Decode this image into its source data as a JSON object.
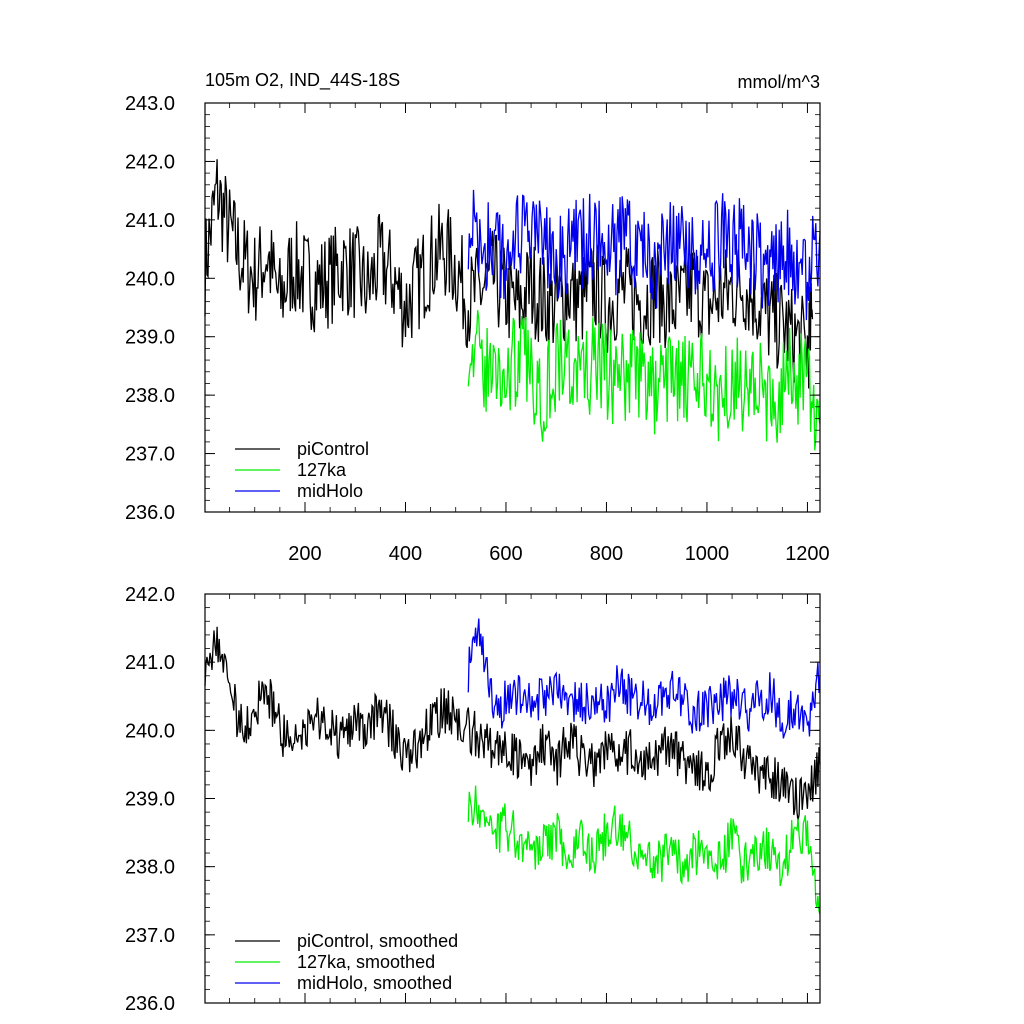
{
  "chart_data": [
    {
      "type": "line",
      "title_left": "105m O2, IND_44S-18S",
      "title_right": "mmol/m^3",
      "xlim": [
        1,
        1225
      ],
      "ylim": [
        236.0,
        243.0
      ],
      "y_ticks": [
        "236.0",
        "237.0",
        "238.0",
        "239.0",
        "240.0",
        "241.0",
        "242.0",
        "243.0"
      ],
      "x_ticks": [
        "200",
        "400",
        "600",
        "800",
        "1000",
        "1200"
      ],
      "legend_position": "bottom-left",
      "series": [
        {
          "name": "piControl",
          "color": "#000000",
          "x": [
            1,
            25,
            50,
            75,
            100,
            125,
            150,
            175,
            200,
            225,
            250,
            275,
            300,
            325,
            350,
            375,
            400,
            425,
            450,
            475,
            500,
            525,
            550,
            575,
            600,
            625,
            650,
            675,
            700,
            725,
            750,
            775,
            800,
            825,
            850,
            875,
            900,
            925,
            950,
            975,
            1000,
            1025,
            1050,
            1075,
            1100,
            1125,
            1150,
            1175,
            1200,
            1210
          ],
          "values": [
            240.2,
            241.5,
            240.8,
            240.3,
            240.0,
            240.4,
            239.6,
            240.2,
            240.0,
            239.9,
            240.0,
            240.2,
            240.1,
            239.8,
            240.3,
            240.0,
            239.5,
            239.9,
            240.3,
            240.5,
            240.2,
            239.6,
            239.8,
            240.0,
            239.7,
            239.5,
            239.9,
            239.6,
            239.5,
            239.8,
            239.6,
            239.9,
            239.5,
            239.8,
            239.7,
            239.6,
            239.8,
            239.5,
            239.6,
            239.9,
            239.5,
            239.7,
            239.8,
            239.9,
            239.6,
            239.3,
            239.2,
            239.0,
            238.8,
            239.3
          ]
        },
        {
          "name": "127ka",
          "color": "#00ee00",
          "x": [
            525,
            550,
            575,
            600,
            625,
            650,
            675,
            700,
            725,
            750,
            775,
            800,
            825,
            850,
            875,
            900,
            925,
            950,
            975,
            1000,
            1025,
            1050,
            1075,
            1100,
            1125,
            1150,
            1175,
            1200,
            1225
          ],
          "values": [
            239.0,
            238.5,
            238.4,
            238.3,
            238.7,
            238.4,
            238.0,
            238.6,
            238.5,
            238.3,
            238.5,
            238.4,
            238.2,
            238.5,
            238.3,
            238.0,
            238.4,
            238.2,
            238.1,
            238.3,
            238.0,
            238.4,
            238.1,
            238.3,
            237.7,
            238.2,
            238.4,
            238.1,
            237.5
          ]
        },
        {
          "name": "midHolo",
          "color": "#0000ee",
          "x": [
            525,
            550,
            575,
            600,
            625,
            650,
            675,
            700,
            725,
            750,
            775,
            800,
            825,
            850,
            875,
            900,
            925,
            950,
            975,
            1000,
            1025,
            1050,
            1075,
            1100,
            1125,
            1150,
            1175,
            1200,
            1225
          ],
          "values": [
            241.0,
            240.6,
            240.4,
            240.5,
            240.6,
            240.7,
            240.5,
            240.4,
            240.6,
            240.5,
            240.7,
            240.4,
            240.6,
            240.7,
            240.5,
            240.3,
            240.6,
            240.4,
            240.5,
            240.2,
            240.6,
            240.7,
            240.4,
            240.3,
            240.2,
            240.5,
            240.4,
            240.1,
            240.8
          ]
        }
      ]
    },
    {
      "type": "line",
      "xlim": [
        1,
        1225
      ],
      "ylim": [
        236.0,
        242.0
      ],
      "y_ticks": [
        "236.0",
        "237.0",
        "238.0",
        "239.0",
        "240.0",
        "241.0",
        "242.0"
      ],
      "legend_position": "bottom-left",
      "series": [
        {
          "name": "piControl, smoothed",
          "color": "#000000",
          "x": [
            1,
            25,
            50,
            75,
            100,
            125,
            150,
            175,
            200,
            225,
            250,
            275,
            300,
            325,
            350,
            375,
            400,
            425,
            450,
            475,
            500,
            525,
            550,
            575,
            600,
            625,
            650,
            675,
            700,
            725,
            750,
            775,
            800,
            825,
            850,
            875,
            900,
            925,
            950,
            975,
            1000,
            1025,
            1050,
            1075,
            1100,
            1125,
            1150,
            1175,
            1200,
            1225
          ],
          "values": [
            241.0,
            241.4,
            240.6,
            240.0,
            240.3,
            240.6,
            240.0,
            239.8,
            240.1,
            240.2,
            240.0,
            239.9,
            240.2,
            240.0,
            240.3,
            240.0,
            239.6,
            239.7,
            240.1,
            240.3,
            240.2,
            240.0,
            239.9,
            239.7,
            239.8,
            239.6,
            239.5,
            239.8,
            239.5,
            239.9,
            239.6,
            239.5,
            239.8,
            239.6,
            239.7,
            239.5,
            239.6,
            239.8,
            239.6,
            239.4,
            239.3,
            239.8,
            239.9,
            239.6,
            239.4,
            239.3,
            239.2,
            239.0,
            239.1,
            239.5
          ]
        },
        {
          "name": "127ka, smoothed",
          "color": "#00ee00",
          "x": [
            525,
            550,
            575,
            600,
            625,
            650,
            675,
            700,
            725,
            750,
            775,
            800,
            825,
            850,
            875,
            900,
            925,
            950,
            975,
            1000,
            1025,
            1050,
            1075,
            1100,
            1125,
            1150,
            1175,
            1200,
            1225
          ],
          "values": [
            239.0,
            238.8,
            238.5,
            238.6,
            238.4,
            238.2,
            238.3,
            238.5,
            238.2,
            238.4,
            238.1,
            238.5,
            238.6,
            238.3,
            238.2,
            238.0,
            238.3,
            238.0,
            238.2,
            238.3,
            238.1,
            238.4,
            238.0,
            238.3,
            238.2,
            238.0,
            238.5,
            238.4,
            237.3
          ]
        },
        {
          "name": "midHolo, smoothed",
          "color": "#0000ee",
          "x": [
            525,
            550,
            575,
            600,
            625,
            650,
            675,
            700,
            725,
            750,
            775,
            800,
            825,
            850,
            875,
            900,
            925,
            950,
            975,
            1000,
            1025,
            1050,
            1075,
            1100,
            1125,
            1150,
            1175,
            1200,
            1225
          ],
          "values": [
            240.9,
            241.5,
            240.3,
            240.4,
            240.6,
            240.4,
            240.5,
            240.6,
            240.5,
            240.4,
            240.5,
            240.3,
            240.7,
            240.5,
            240.4,
            240.3,
            240.6,
            240.4,
            240.2,
            240.3,
            240.4,
            240.5,
            240.3,
            240.4,
            240.6,
            240.1,
            240.3,
            240.0,
            240.8
          ]
        }
      ]
    }
  ]
}
